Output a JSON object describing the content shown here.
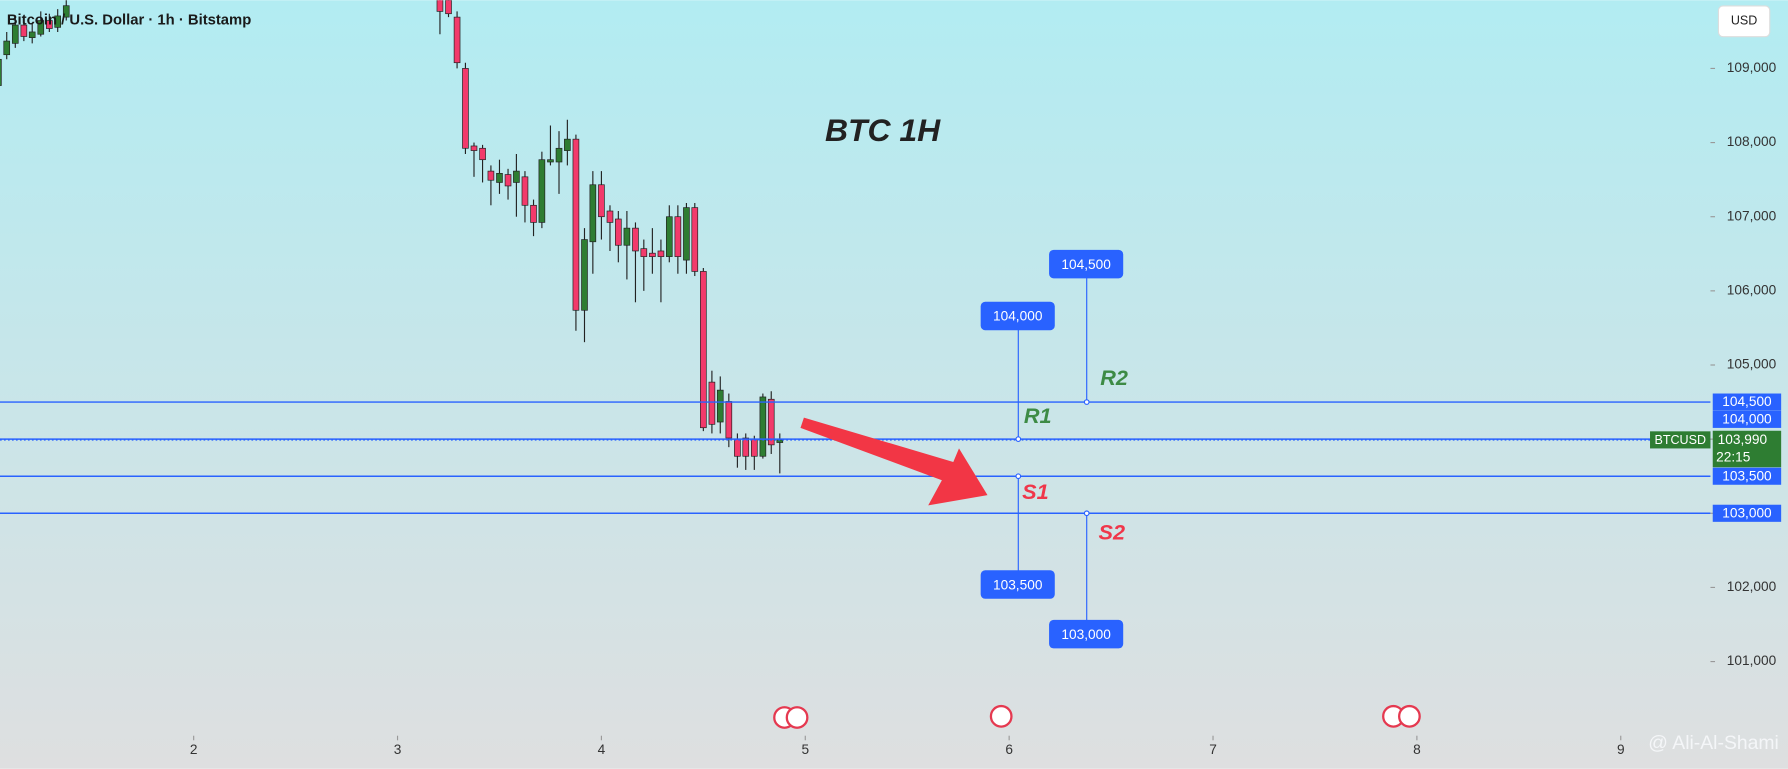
{
  "chart_data": {
    "type": "candlestick",
    "header": "Bitcoin / U.S. Dollar · 1h · Bitstamp",
    "title": "BTC 1H",
    "currency": "USD",
    "symbol": "BTCUSD",
    "last_price": {
      "value": 103990,
      "label": "103,990"
    },
    "countdown": "22:15",
    "watermark": "@ Ali-Al-Shami",
    "up_color": "#2e7d32",
    "down_color": "#f23a6b",
    "level_color": "#2962ff",
    "grid": false,
    "x": [
      1.042,
      1.083,
      1.125,
      1.167,
      1.208,
      1.25,
      1.292,
      1.333,
      1.375,
      3.208,
      3.25,
      3.292,
      3.333,
      3.375,
      3.417,
      3.458,
      3.5,
      3.542,
      3.583,
      3.625,
      3.667,
      3.708,
      3.75,
      3.792,
      3.833,
      3.875,
      3.917,
      3.958,
      4,
      4.042,
      4.083,
      4.125,
      4.167,
      4.208,
      4.25,
      4.292,
      4.333,
      4.375,
      4.417,
      4.458,
      4.5,
      4.542,
      4.583,
      4.625,
      4.667,
      4.708,
      4.75,
      4.792,
      4.833,
      4.875
    ],
    "open": [
      108769,
      109185,
      109338,
      109585,
      109415,
      109461,
      109646,
      109554,
      109692,
      110077,
      109923,
      109692,
      109000,
      107954,
      107923,
      107615,
      107462,
      107569,
      107462,
      107538,
      107154,
      106923,
      107738,
      107738,
      107892,
      108046,
      105738,
      106662,
      107431,
      107077,
      106969,
      106615,
      106846,
      106569,
      106508,
      106538,
      106462,
      107000,
      106415,
      107123,
      106262,
      104769,
      104231,
      104508,
      104000,
      104015,
      104000,
      103769,
      104538,
      103954
    ],
    "high": [
      109308,
      109492,
      109692,
      109646,
      109615,
      109769,
      109738,
      109800,
      110000,
      110231,
      110000,
      109769,
      109077,
      108000,
      107969,
      107692,
      107769,
      107646,
      107846,
      107615,
      107231,
      107877,
      108231,
      108154,
      108308,
      108108,
      106846,
      107615,
      107615,
      107154,
      107077,
      107077,
      106923,
      106692,
      106846,
      106692,
      107154,
      107154,
      107185,
      107185,
      106308,
      104923,
      104846,
      104615,
      104077,
      104077,
      104046,
      104615,
      104646,
      104077
    ],
    "low": [
      108723,
      109123,
      109277,
      109369,
      109338,
      109431,
      109492,
      109492,
      109646,
      109461,
      109692,
      109000,
      107846,
      107538,
      107462,
      107154,
      107308,
      107231,
      107000,
      106923,
      106738,
      106846,
      107692,
      107308,
      107692,
      105462,
      105308,
      106231,
      106692,
      106538,
      106385,
      106154,
      105846,
      106000,
      106231,
      105846,
      106385,
      106231,
      106231,
      106200,
      104108,
      104077,
      104077,
      103892,
      103615,
      103585,
      103585,
      103738,
      103800,
      103538
    ],
    "close": [
      109123,
      109369,
      109585,
      109431,
      109492,
      109646,
      109538,
      109708,
      109846,
      109769,
      109738,
      109077,
      107923,
      107892,
      107769,
      107492,
      107585,
      107415,
      107615,
      107154,
      106923,
      107769,
      107769,
      107923,
      108046,
      105738,
      106692,
      107431,
      107000,
      106923,
      106615,
      106846,
      106538,
      106462,
      106462,
      106462,
      107000,
      106462,
      107123,
      106262,
      104154,
      104200,
      104661,
      104015,
      103769,
      103769,
      103769,
      104569,
      103923,
      103990
    ],
    "xlim": [
      1.05,
      9.44
    ],
    "ylim": [
      100000,
      109920
    ],
    "xticks": [
      2,
      3,
      4,
      5,
      6,
      7,
      8,
      9
    ],
    "yticks": [
      {
        "value": 101000,
        "label": "101,000"
      },
      {
        "value": 102000,
        "label": "102,000"
      },
      {
        "value": 103000,
        "label": "103,000"
      },
      {
        "value": 104000,
        "label": "104,000"
      },
      {
        "value": 105000,
        "label": "105,000"
      },
      {
        "value": 106000,
        "label": "106,000"
      },
      {
        "value": 107000,
        "label": "107,000"
      },
      {
        "value": 108000,
        "label": "108,000"
      },
      {
        "value": 109000,
        "label": "109,000"
      }
    ],
    "levels": [
      {
        "value": 104500,
        "label": "104,500",
        "tag": "R2",
        "color": "#3d8b45"
      },
      {
        "value": 104000,
        "label": "104,000",
        "tag": "R1",
        "color": "#3d8b45"
      },
      {
        "value": 103500,
        "label": "103,500",
        "tag": "S1",
        "color": "#f0364a"
      },
      {
        "value": 103000,
        "label": "103,000",
        "tag": "S2",
        "color": "#f0364a"
      }
    ]
  }
}
